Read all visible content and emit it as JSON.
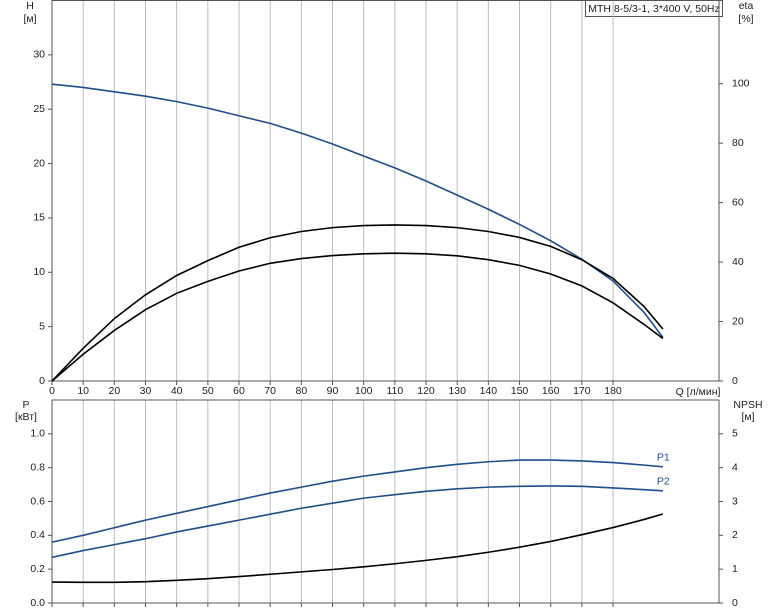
{
  "chart_data": [
    {
      "type": "line",
      "title": "MTH 8-5/3-1, 3*400 V, 50Hz",
      "y_label": "H",
      "y_unit": "[м]",
      "y2_label": "eta",
      "y2_unit": "[%]",
      "x_label": "Q [л/мин]",
      "x": [
        0,
        10,
        20,
        30,
        40,
        50,
        60,
        70,
        80,
        90,
        100,
        110,
        120,
        130,
        140,
        150,
        160,
        170,
        180,
        190,
        196
      ],
      "xlim": [
        0,
        214
      ],
      "xticks": [
        0,
        10,
        20,
        30,
        40,
        50,
        60,
        70,
        80,
        90,
        100,
        110,
        120,
        130,
        140,
        150,
        160,
        170,
        180
      ],
      "ylim": [
        0,
        35
      ],
      "yticks": [
        0,
        5,
        10,
        15,
        20,
        25,
        30
      ],
      "y2lim": [
        0,
        128
      ],
      "y2ticks": [
        0,
        20,
        40,
        60,
        80,
        100
      ],
      "grid": true,
      "show_xtick_labels": true,
      "series": [
        {
          "color": "#1f4e8c",
          "values": [
            27.3,
            27.0,
            26.6,
            26.2,
            25.7,
            25.1,
            24.4,
            23.7,
            22.8,
            21.8,
            20.7,
            19.6,
            18.4,
            17.1,
            15.8,
            14.4,
            12.9,
            11.2,
            9.2,
            6.3,
            4.0
          ]
        },
        {
          "color": "#000000",
          "axis": "y2",
          "values": [
            0,
            11,
            21,
            29,
            35.5,
            40.5,
            45,
            48.2,
            50.3,
            51.6,
            52.3,
            52.5,
            52.3,
            51.6,
            50.3,
            48.3,
            45.3,
            40.8,
            34.5,
            25,
            17.5
          ]
        },
        {
          "color": "#000000",
          "axis": "y2",
          "values": [
            0,
            9,
            17,
            24,
            29.5,
            33.5,
            37,
            39.6,
            41.2,
            42.2,
            42.8,
            43,
            42.8,
            42.1,
            40.8,
            38.9,
            36,
            32,
            26.3,
            19,
            14.3
          ]
        }
      ]
    },
    {
      "type": "line",
      "y_label": "P",
      "y_unit": "[кВт]",
      "y2_label": "NPSH",
      "y2_unit": "[м]",
      "x": [
        0,
        10,
        20,
        30,
        40,
        50,
        60,
        70,
        80,
        90,
        100,
        110,
        120,
        130,
        140,
        150,
        160,
        170,
        180,
        190,
        196
      ],
      "xlim": [
        0,
        214
      ],
      "xticks": [
        0,
        10,
        20,
        30,
        40,
        50,
        60,
        70,
        80,
        90,
        100,
        110,
        120,
        130,
        140,
        150,
        160,
        170,
        180
      ],
      "ylim": [
        0,
        1.2
      ],
      "yticks": [
        {
          "value": 0,
          "label": "0.0"
        },
        0.2,
        0.4,
        0.6,
        0.8,
        {
          "value": 1,
          "label": "1.0"
        }
      ],
      "y2lim": [
        0,
        6
      ],
      "y2ticks": [
        0,
        1,
        2,
        3,
        4,
        5
      ],
      "grid": true,
      "show_xtick_labels": false,
      "series": [
        {
          "name": "P1",
          "color": "#1f4e8c",
          "values": [
            0.36,
            0.4,
            0.445,
            0.49,
            0.53,
            0.57,
            0.61,
            0.65,
            0.685,
            0.72,
            0.75,
            0.775,
            0.8,
            0.82,
            0.835,
            0.845,
            0.845,
            0.84,
            0.83,
            0.815,
            0.805
          ]
        },
        {
          "name": "P2",
          "color": "#1f4e8c",
          "values": [
            0.27,
            0.31,
            0.345,
            0.38,
            0.42,
            0.455,
            0.49,
            0.525,
            0.56,
            0.59,
            0.62,
            0.64,
            0.66,
            0.675,
            0.685,
            0.69,
            0.692,
            0.69,
            0.68,
            0.67,
            0.663
          ]
        },
        {
          "color": "#000000",
          "axis": "y2",
          "values": [
            0.62,
            0.61,
            0.61,
            0.63,
            0.67,
            0.72,
            0.78,
            0.85,
            0.92,
            0.99,
            1.07,
            1.16,
            1.26,
            1.37,
            1.5,
            1.65,
            1.82,
            2.02,
            2.23,
            2.47,
            2.63
          ]
        }
      ]
    }
  ]
}
